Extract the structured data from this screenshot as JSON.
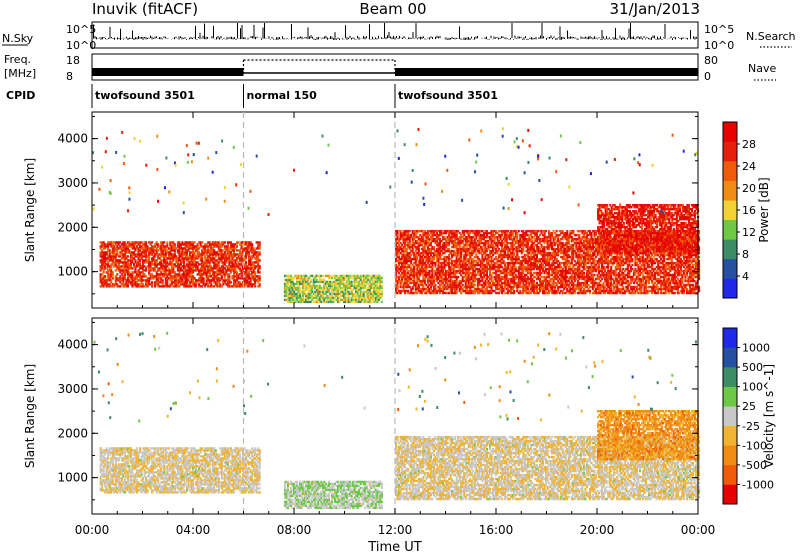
{
  "header": {
    "station": "Inuvik (fitACF)",
    "beam": "Beam 00",
    "date": "31/Jan/2013"
  },
  "top_panels": {
    "nsky_label": "N.Sky",
    "nsky_ticks": [
      "10^5",
      "10^0"
    ],
    "nsearch_label": "N.Search",
    "freq_label_line1": "Freq.",
    "freq_label_line2": "[MHz]",
    "freq_ticks": [
      "18",
      "8"
    ],
    "nave_label": "Nave",
    "nave_ticks": [
      "80",
      "0"
    ],
    "cpid_label": "CPID",
    "cpid_segments": [
      {
        "label": "twofsound 3501",
        "start_hour": 0,
        "end_hour": 6
      },
      {
        "label": "normal 150",
        "start_hour": 6,
        "end_hour": 12
      },
      {
        "label": "twofsound 3501",
        "start_hour": 12,
        "end_hour": 24
      }
    ]
  },
  "chart_data": [
    {
      "type": "heatmap",
      "title": "Power",
      "xlabel": "Time UT",
      "ylabel": "Slant Range [km]",
      "xlim_hours": [
        0,
        24
      ],
      "ylim": [
        180,
        4600
      ],
      "y_ticks": [
        1000,
        2000,
        3000,
        4000
      ],
      "colorbar": {
        "label": "Power [dB]",
        "range": [
          0,
          32
        ],
        "ticks": [
          4,
          8,
          12,
          16,
          20,
          24,
          28
        ],
        "colors": [
          "#1e28e6",
          "#2850a0",
          "#3c8c64",
          "#6ec846",
          "#f0d232",
          "#f08c14",
          "#f05a0a",
          "#e61e0a",
          "#e60000"
        ]
      },
      "echo_regions": [
        {
          "start_hour": 0.3,
          "end_hour": 6.6,
          "min_km": 650,
          "max_km": 1650,
          "level": 26
        },
        {
          "start_hour": 7.6,
          "end_hour": 11.5,
          "min_km": 300,
          "max_km": 900,
          "level": 14
        },
        {
          "start_hour": 12.0,
          "end_hour": 24.0,
          "min_km": 500,
          "max_km": 1900,
          "level": 26
        },
        {
          "start_hour": 20.0,
          "end_hour": 24.0,
          "min_km": 1400,
          "max_km": 2500,
          "level": 28
        }
      ]
    },
    {
      "type": "heatmap",
      "title": "Velocity",
      "xlabel": "Time UT",
      "ylabel": "Slant Range [km]",
      "xlim_hours": [
        0,
        24
      ],
      "ylim": [
        180,
        4600
      ],
      "y_ticks": [
        1000,
        2000,
        3000,
        4000
      ],
      "colorbar": {
        "label": "Velocity [m s^-1]",
        "range": [
          -1250,
          1250
        ],
        "ticks": [
          1000,
          500,
          100,
          25,
          -25,
          -100,
          -500,
          -1000
        ],
        "colors": [
          "#e60000",
          "#f05a0a",
          "#f08c14",
          "#f0b432",
          "#c8c8c8",
          "#6ec846",
          "#3c8c64",
          "#2850a0",
          "#1e28e6"
        ]
      },
      "echo_regions": [
        {
          "start_hour": 0.3,
          "end_hour": 6.6,
          "min_km": 650,
          "max_km": 1650,
          "level": -100
        },
        {
          "start_hour": 7.6,
          "end_hour": 11.5,
          "min_km": 300,
          "max_km": 900,
          "level": 100
        },
        {
          "start_hour": 12.0,
          "end_hour": 24.0,
          "min_km": 500,
          "max_km": 1900,
          "level": -100
        },
        {
          "start_hour": 20.0,
          "end_hour": 24.0,
          "min_km": 1400,
          "max_km": 2500,
          "level": -500
        }
      ]
    }
  ],
  "x_axis": {
    "label": "Time UT",
    "ticks": [
      "00:00",
      "04:00",
      "08:00",
      "12:00",
      "16:00",
      "20:00",
      "00:00"
    ]
  }
}
